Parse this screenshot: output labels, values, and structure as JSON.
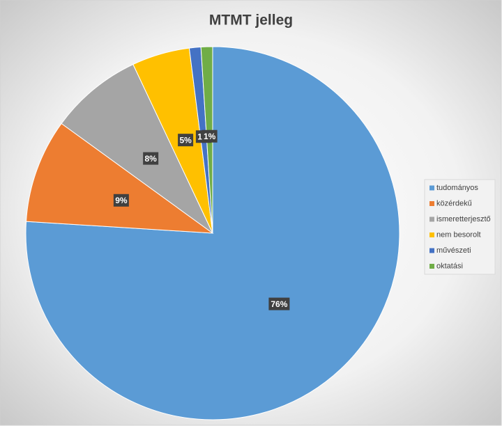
{
  "chart_data": {
    "type": "pie",
    "title": "MTMT jelleg",
    "categories": [
      "tudományos",
      "közérdekű",
      "ismeretterjesztő",
      "nem besorolt",
      "művészeti",
      "oktatási"
    ],
    "values": [
      76,
      9,
      8,
      5,
      1,
      1
    ],
    "value_labels": [
      "76%",
      "9%",
      "8%",
      "5%",
      "1%",
      "1%"
    ],
    "colors": [
      "#5b9bd5",
      "#ed7d31",
      "#a5a5a5",
      "#ffc000",
      "#4472c4",
      "#70ad47"
    ],
    "legend": "right"
  }
}
